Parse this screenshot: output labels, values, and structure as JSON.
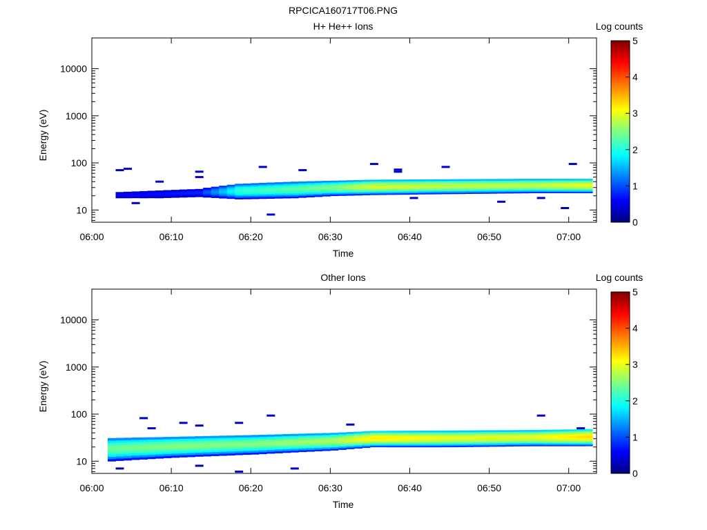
{
  "figure_title": "RPCICA160717T06.PNG",
  "colors": {
    "colormap": [
      "#000080",
      "#0000ff",
      "#0080ff",
      "#00ffff",
      "#80ff80",
      "#ffff00",
      "#ff8000",
      "#ff0000",
      "#800000"
    ]
  },
  "chart_data": [
    {
      "type": "heatmap",
      "title": "H+ He++ Ions",
      "xlabel": "Time",
      "ylabel": "Energy (eV)",
      "x_ticks": [
        "06:00",
        "06:10",
        "06:20",
        "06:30",
        "06:40",
        "06:50",
        "07:00"
      ],
      "y_ticks": [
        "10",
        "100",
        "1000",
        "10000"
      ],
      "y_scale": "log",
      "colorbar_label": "Log counts",
      "colorbar_ticks": [
        "0",
        "1",
        "2",
        "3",
        "4",
        "5"
      ],
      "colorbar_range": [
        0,
        5
      ],
      "band": [
        {
          "t": "06:03",
          "e_lo": 18,
          "e_hi": 24,
          "peak": 0.6
        },
        {
          "t": "06:08",
          "e_lo": 18,
          "e_hi": 26,
          "peak": 0.7
        },
        {
          "t": "06:13",
          "e_lo": 19,
          "e_hi": 28,
          "peak": 0.8
        },
        {
          "t": "06:18",
          "e_lo": 17,
          "e_hi": 36,
          "peak": 2.1
        },
        {
          "t": "06:25",
          "e_lo": 18,
          "e_hi": 40,
          "peak": 2.3
        },
        {
          "t": "06:30",
          "e_lo": 20,
          "e_hi": 42,
          "peak": 2.5
        },
        {
          "t": "06:35",
          "e_lo": 21,
          "e_hi": 44,
          "peak": 2.9
        },
        {
          "t": "06:45",
          "e_lo": 22,
          "e_hi": 45,
          "peak": 2.8
        },
        {
          "t": "06:55",
          "e_lo": 23,
          "e_hi": 46,
          "peak": 2.8
        },
        {
          "t": "07:02",
          "e_lo": 23,
          "e_hi": 46,
          "peak": 3.0
        }
      ],
      "sparse": [
        {
          "t": "06:03",
          "e": 70
        },
        {
          "t": "06:04",
          "e": 75
        },
        {
          "t": "06:05",
          "e": 14
        },
        {
          "t": "06:08",
          "e": 40
        },
        {
          "t": "06:13",
          "e": 65
        },
        {
          "t": "06:13",
          "e": 50
        },
        {
          "t": "06:21",
          "e": 82
        },
        {
          "t": "06:22",
          "e": 8
        },
        {
          "t": "06:26",
          "e": 70
        },
        {
          "t": "06:35",
          "e": 95
        },
        {
          "t": "06:38",
          "e": 72
        },
        {
          "t": "06:38",
          "e": 65
        },
        {
          "t": "06:44",
          "e": 82
        },
        {
          "t": "06:51",
          "e": 15
        },
        {
          "t": "06:56",
          "e": 18
        },
        {
          "t": "07:00",
          "e": 95
        },
        {
          "t": "06:59",
          "e": 11
        },
        {
          "t": "06:40",
          "e": 18
        }
      ]
    },
    {
      "type": "heatmap",
      "title": "Other Ions",
      "xlabel": "Time",
      "ylabel": "Energy (eV)",
      "x_ticks": [
        "06:00",
        "06:10",
        "06:20",
        "06:30",
        "06:40",
        "06:50",
        "07:00"
      ],
      "y_ticks": [
        "10",
        "100",
        "1000",
        "10000"
      ],
      "y_scale": "log",
      "colorbar_label": "Log counts",
      "colorbar_ticks": [
        "0",
        "1",
        "2",
        "3",
        "4",
        "5"
      ],
      "colorbar_range": [
        0,
        5
      ],
      "band": [
        {
          "t": "06:02",
          "e_lo": 10,
          "e_hi": 31,
          "peak": 2.4
        },
        {
          "t": "06:10",
          "e_lo": 12,
          "e_hi": 33,
          "peak": 2.5
        },
        {
          "t": "06:20",
          "e_lo": 14,
          "e_hi": 36,
          "peak": 2.5
        },
        {
          "t": "06:30",
          "e_lo": 17,
          "e_hi": 40,
          "peak": 2.7
        },
        {
          "t": "06:35",
          "e_lo": 20,
          "e_hi": 44,
          "peak": 3.2
        },
        {
          "t": "06:45",
          "e_lo": 20,
          "e_hi": 45,
          "peak": 3.0
        },
        {
          "t": "06:55",
          "e_lo": 21,
          "e_hi": 46,
          "peak": 3.0
        },
        {
          "t": "07:02",
          "e_lo": 21,
          "e_hi": 48,
          "peak": 3.3
        }
      ],
      "sparse": [
        {
          "t": "06:03",
          "e": 7
        },
        {
          "t": "06:06",
          "e": 82
        },
        {
          "t": "06:07",
          "e": 50
        },
        {
          "t": "06:11",
          "e": 65
        },
        {
          "t": "06:13",
          "e": 57
        },
        {
          "t": "06:13",
          "e": 8
        },
        {
          "t": "06:18",
          "e": 65
        },
        {
          "t": "06:18",
          "e": 6
        },
        {
          "t": "06:22",
          "e": 93
        },
        {
          "t": "06:25",
          "e": 7
        },
        {
          "t": "06:32",
          "e": 60
        },
        {
          "t": "06:56",
          "e": 93
        },
        {
          "t": "07:01",
          "e": 50
        }
      ]
    }
  ]
}
